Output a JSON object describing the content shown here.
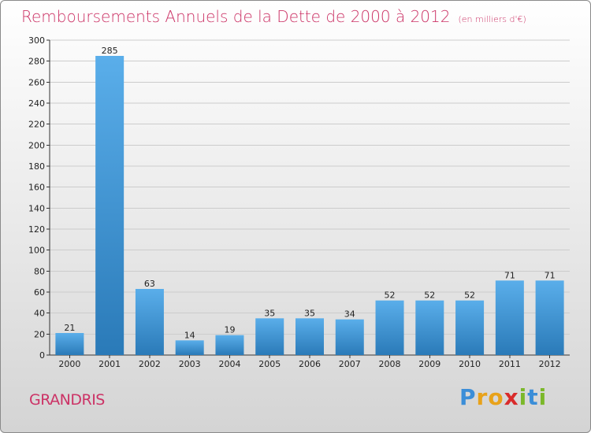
{
  "title": "Remboursements Annuels de la Dette de 2000 à 2012",
  "unit_note": "(en milliers d'€)",
  "place": "GRANDRIS",
  "logo": {
    "letters": [
      "P",
      "r",
      "o",
      "x",
      "i",
      "t",
      "i"
    ],
    "colors": [
      "#3b8ed8",
      "#e8a21a",
      "#e8a21a",
      "#d92b2b",
      "#7bb82a",
      "#3b8ed8",
      "#7bb82a"
    ]
  },
  "colors": {
    "title": "#cc3366",
    "bar_light": "#5aaeea",
    "bar_dark": "#2a7ab8",
    "grid": "#cccccc"
  },
  "chart_data": {
    "type": "bar",
    "title": "Remboursements Annuels de la Dette de 2000 à 2012",
    "xlabel": "",
    "ylabel": "",
    "ylim": [
      0,
      300
    ],
    "yticks": [
      0,
      20,
      40,
      60,
      80,
      100,
      120,
      140,
      160,
      180,
      200,
      220,
      240,
      260,
      280,
      300
    ],
    "grid": true,
    "categories": [
      "2000",
      "2001",
      "2002",
      "2003",
      "2004",
      "2005",
      "2006",
      "2007",
      "2008",
      "2009",
      "2010",
      "2011",
      "2012"
    ],
    "values": [
      21,
      285,
      63,
      14,
      19,
      35,
      35,
      34,
      52,
      52,
      52,
      71,
      71
    ]
  }
}
